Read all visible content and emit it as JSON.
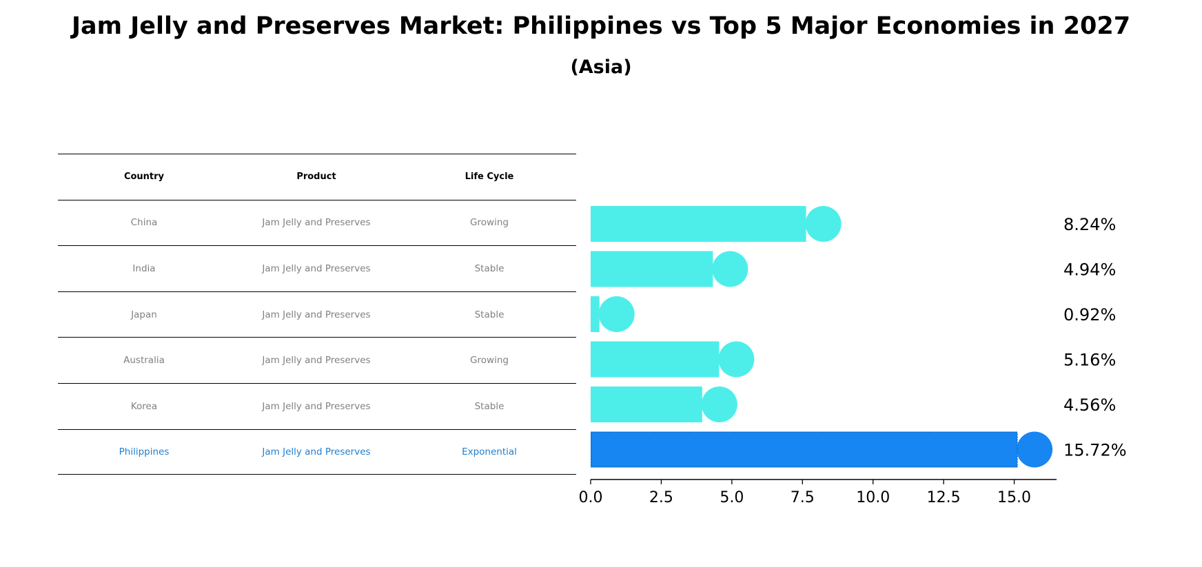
{
  "title": "Jam Jelly and Preserves Market: Philippines vs Top 5 Major Economies in 2027",
  "subtitle": "(Asia)",
  "table": {
    "headers": [
      "Country",
      "Product",
      "Life Cycle"
    ],
    "rows": [
      {
        "country": "China",
        "product": "Jam Jelly and Preserves",
        "life_cycle": "Growing",
        "highlight": false
      },
      {
        "country": "India",
        "product": "Jam Jelly and Preserves",
        "life_cycle": "Stable",
        "highlight": false
      },
      {
        "country": "Japan",
        "product": "Jam Jelly and Preserves",
        "life_cycle": "Stable",
        "highlight": false
      },
      {
        "country": "Australia",
        "product": "Jam Jelly and Preserves",
        "life_cycle": "Growing",
        "highlight": false
      },
      {
        "country": "Korea",
        "product": "Jam Jelly and Preserves",
        "life_cycle": "Stable",
        "highlight": false
      },
      {
        "country": "Philippines",
        "product": "Jam Jelly and Preserves",
        "life_cycle": "Exponential",
        "highlight": true
      }
    ]
  },
  "chart_data": {
    "type": "bar",
    "orientation": "horizontal",
    "categories": [
      "China",
      "India",
      "Japan",
      "Australia",
      "Korea",
      "Philippines"
    ],
    "values": [
      8.24,
      4.94,
      0.92,
      5.16,
      4.56,
      15.72
    ],
    "value_labels": [
      "8.24%",
      "4.94%",
      "0.92%",
      "5.16%",
      "4.56%",
      "15.72%"
    ],
    "xlim": [
      0,
      16.5
    ],
    "xticks": [
      0.0,
      2.5,
      5.0,
      7.5,
      10.0,
      12.5,
      15.0
    ],
    "xtick_labels": [
      "0.0",
      "2.5",
      "5.0",
      "7.5",
      "10.0",
      "12.5",
      "15.0"
    ],
    "grid": false,
    "colors": {
      "default": "#4deeea",
      "highlight": "#1785f2",
      "table_highlight_text": "#1f7fd0",
      "table_text": "#808080"
    }
  }
}
